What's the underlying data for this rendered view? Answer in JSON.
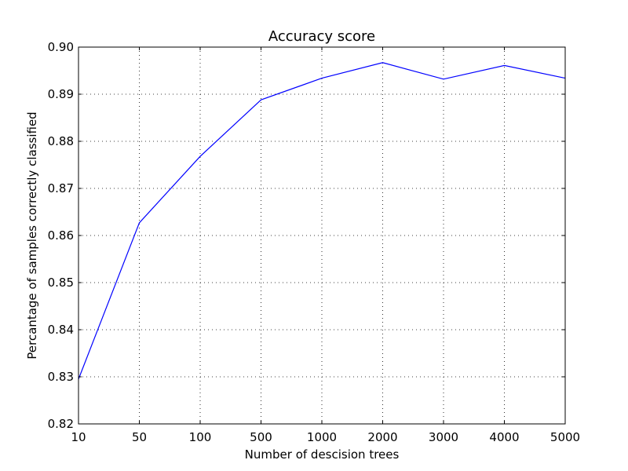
{
  "chart_data": {
    "type": "line",
    "title": "Accuracy score",
    "xlabel": "Number of descision trees",
    "ylabel": "Percantage of samples correctly classified",
    "categories": [
      "10",
      "50",
      "100",
      "500",
      "1000",
      "2000",
      "3000",
      "4000",
      "5000"
    ],
    "series": [
      {
        "values": [
          0.8295,
          0.8627,
          0.8768,
          0.8888,
          0.8934,
          0.8967,
          0.8932,
          0.8961,
          0.8934
        ],
        "color": "#0000ff"
      }
    ],
    "ylim": [
      0.82,
      0.9
    ],
    "yticks": [
      "0.82",
      "0.83",
      "0.84",
      "0.85",
      "0.86",
      "0.87",
      "0.88",
      "0.89",
      "0.90"
    ],
    "grid": true,
    "grid_style": "dotted"
  }
}
